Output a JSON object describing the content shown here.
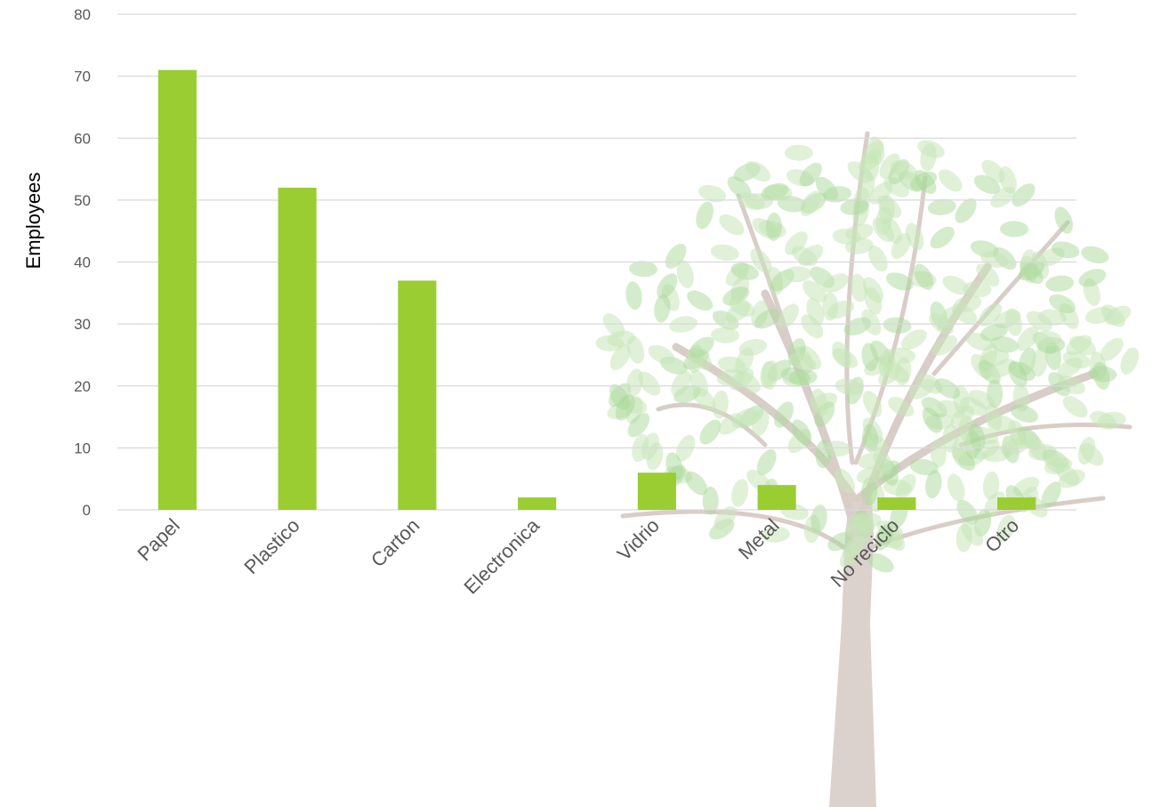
{
  "chart_data": {
    "type": "bar",
    "categories": [
      "Papel",
      "Plastico",
      "Carton",
      "Electronica",
      "Vidrio",
      "Metal",
      "No reciclo",
      "Otro"
    ],
    "values": [
      71,
      52,
      37,
      2,
      6,
      4,
      2,
      2
    ],
    "ylabel": "Employees",
    "ylim": [
      0,
      80
    ],
    "yticks": [
      0,
      10,
      20,
      30,
      40,
      50,
      60,
      70,
      80
    ],
    "grid": true,
    "legend": "none",
    "colors": {
      "bar": "#9acd32",
      "grid": "#d9d9d9",
      "tick_text": "#595959"
    }
  },
  "decoration": {
    "background_image": "tree-icon"
  }
}
